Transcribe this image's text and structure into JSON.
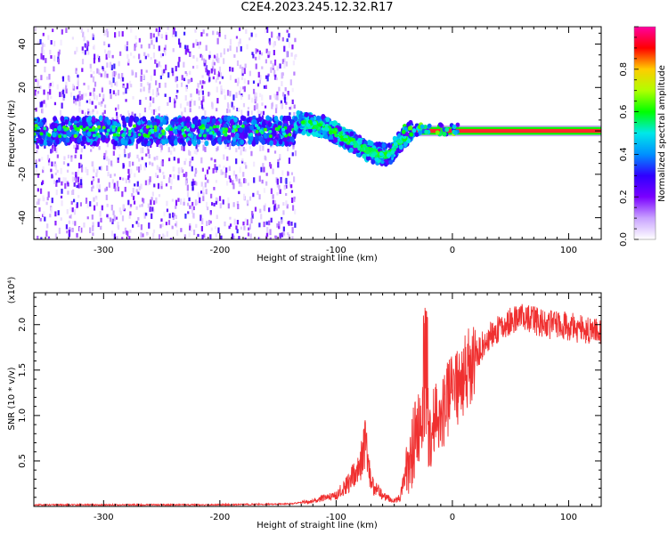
{
  "title": "C2E4.2023.245.12.32.R17",
  "chart_data": [
    {
      "type": "heatmap",
      "title": "C2E4.2023.245.12.32.R17",
      "xlabel": "Height of straight line (km)",
      "ylabel": "Frequency (Hz)",
      "xlim": [
        -360,
        128
      ],
      "ylim": [
        -50,
        48
      ],
      "x_ticks": [
        -300,
        -200,
        -100,
        0,
        100
      ],
      "y_ticks": [
        -40,
        -20,
        0,
        20,
        40
      ],
      "colorbar": {
        "label": "Normalized spectral amplitude",
        "range": [
          0,
          1
        ],
        "ticks": [
          0.0,
          0.2,
          0.4,
          0.6,
          0.8
        ],
        "colors": [
          "#ffffff",
          "#c9a3ff",
          "#7a00ff",
          "#2f00ff",
          "#0090ff",
          "#00e8e8",
          "#00ff00",
          "#b0ff00",
          "#ffcc00",
          "#ff0000",
          "#ff00a0"
        ]
      },
      "features": {
        "band_center_hz": 0,
        "noise_region_x": [
          -360,
          -135
        ],
        "descending_signal": [
          [
            -135,
            4
          ],
          [
            -110,
            2
          ],
          [
            -90,
            -4
          ],
          [
            -70,
            -10
          ],
          [
            -55,
            -11
          ],
          [
            -45,
            -5
          ],
          [
            -35,
            0
          ],
          [
            0,
            1
          ],
          [
            128,
            0
          ]
        ],
        "clean_tone_x": [
          -35,
          128
        ]
      }
    },
    {
      "type": "line",
      "xlabel": "Height of straight line (km)",
      "ylabel": "SNR (10 * v/v)",
      "y_scale_label": "(x10⁴)",
      "xlim": [
        -360,
        128
      ],
      "ylim": [
        0,
        2.35
      ],
      "x_ticks": [
        -300,
        -200,
        -100,
        0,
        100
      ],
      "y_ticks": [
        0.5,
        1.0,
        1.5,
        2.0
      ],
      "color": "#f03030",
      "series": [
        {
          "x": [
            -360,
            -300,
            -200,
            -140,
            -120,
            -100,
            -90,
            -80,
            -75,
            -70,
            -60,
            -50,
            -45,
            -40,
            -35,
            -30,
            -25,
            -22,
            -20,
            -15,
            -10,
            0,
            10,
            20,
            30,
            40,
            50,
            60,
            70,
            80,
            90,
            100,
            110,
            120,
            128
          ],
          "values": [
            0.01,
            0.01,
            0.01,
            0.02,
            0.05,
            0.1,
            0.2,
            0.35,
            0.6,
            0.2,
            0.1,
            0.05,
            0.08,
            0.3,
            0.6,
            0.9,
            1.2,
            1.0,
            0.9,
            1.0,
            1.1,
            1.3,
            1.5,
            1.65,
            1.85,
            1.95,
            2.05,
            2.1,
            2.05,
            2.0,
            2.0,
            1.98,
            1.95,
            1.92,
            1.9
          ]
        }
      ]
    }
  ]
}
